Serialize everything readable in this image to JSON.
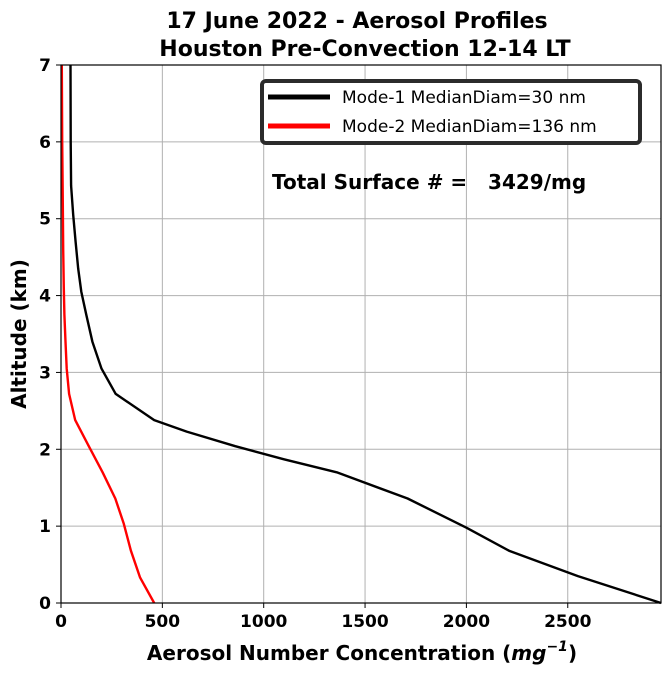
{
  "chart_data": {
    "type": "line",
    "title": [
      "17 June 2022 - Aerosol Profiles",
      "Houston Pre-Convection 12-14 LT"
    ],
    "xlabel": "Aerosol Number Concentration (",
    "xlabel_unit": "mg",
    "xlabel_exp": "−1",
    "xlabel_close": ")",
    "ylabel": "Altitude (km)",
    "xlim": [
      0,
      2960
    ],
    "ylim": [
      0,
      7
    ],
    "xticks": [
      0,
      500,
      1000,
      1500,
      2000,
      2500
    ],
    "yticks": [
      0,
      1,
      2,
      3,
      4,
      5,
      6,
      7
    ],
    "grid": true,
    "legend_position": "top-right",
    "annotation": "Total Surface # =   3429/mg",
    "series": [
      {
        "name": "Mode-1 MedianDiam=30 nm",
        "color": "#000000",
        "points": [
          [
            2960,
            0
          ],
          [
            2550,
            0.35
          ],
          [
            2210,
            0.68
          ],
          [
            2000,
            0.98
          ],
          [
            1710,
            1.36
          ],
          [
            1360,
            1.7
          ],
          [
            1100,
            1.87
          ],
          [
            860,
            2.04
          ],
          [
            620,
            2.23
          ],
          [
            460,
            2.38
          ],
          [
            270,
            2.72
          ],
          [
            200,
            3.05
          ],
          [
            155,
            3.4
          ],
          [
            125,
            3.75
          ],
          [
            100,
            4.05
          ],
          [
            85,
            4.35
          ],
          [
            72,
            4.7
          ],
          [
            60,
            5.05
          ],
          [
            50,
            5.43
          ],
          [
            48,
            6.0
          ],
          [
            47,
            7.0
          ]
        ]
      },
      {
        "name": "Mode-2 MedianDiam=136 nm",
        "color": "#ff0000",
        "points": [
          [
            460,
            0
          ],
          [
            390,
            0.33
          ],
          [
            345,
            0.68
          ],
          [
            310,
            1.03
          ],
          [
            268,
            1.36
          ],
          [
            205,
            1.7
          ],
          [
            135,
            2.05
          ],
          [
            70,
            2.38
          ],
          [
            40,
            2.72
          ],
          [
            28,
            3.05
          ],
          [
            22,
            3.4
          ],
          [
            17,
            3.75
          ],
          [
            14,
            4.1
          ],
          [
            11,
            4.6
          ],
          [
            9,
            5.2
          ],
          [
            6,
            6.0
          ],
          [
            4,
            7.0
          ]
        ]
      }
    ]
  }
}
